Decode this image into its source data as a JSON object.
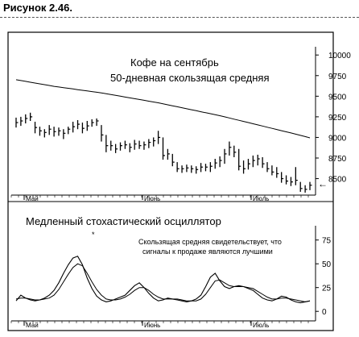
{
  "figure_label": "Рисунок 2.46.",
  "chart_data": [
    {
      "type": "ohlc",
      "title": "Кофе на сентябрь",
      "subtitle": "50-дневная скользящая средняя",
      "x_labels": [
        "Май",
        "Июнь",
        "Июль"
      ],
      "y_ticks": [
        8500,
        8750,
        9000,
        9250,
        9500,
        9750,
        10000
      ],
      "y_tick_labels": [
        "8500",
        "8750",
        "9000",
        "9250",
        "9500",
        "9750",
        "10000"
      ],
      "ylim": [
        8300,
        10100
      ],
      "bars": [
        {
          "h": 9240,
          "l": 9120,
          "c": 9180
        },
        {
          "h": 9250,
          "l": 9140,
          "c": 9200
        },
        {
          "h": 9280,
          "l": 9170,
          "c": 9230
        },
        {
          "h": 9300,
          "l": 9200,
          "c": 9250
        },
        {
          "h": 9190,
          "l": 9050,
          "c": 9120
        },
        {
          "h": 9130,
          "l": 9020,
          "c": 9080
        },
        {
          "h": 9100,
          "l": 9000,
          "c": 9060
        },
        {
          "h": 9150,
          "l": 9030,
          "c": 9100
        },
        {
          "h": 9130,
          "l": 9010,
          "c": 9070
        },
        {
          "h": 9120,
          "l": 9020,
          "c": 9080
        },
        {
          "h": 9100,
          "l": 8980,
          "c": 9050
        },
        {
          "h": 9130,
          "l": 9040,
          "c": 9100
        },
        {
          "h": 9190,
          "l": 9060,
          "c": 9130
        },
        {
          "h": 9210,
          "l": 9100,
          "c": 9160
        },
        {
          "h": 9180,
          "l": 9050,
          "c": 9110
        },
        {
          "h": 9200,
          "l": 9080,
          "c": 9140
        },
        {
          "h": 9220,
          "l": 9130,
          "c": 9180
        },
        {
          "h": 9230,
          "l": 9140,
          "c": 9200
        },
        {
          "h": 9150,
          "l": 8950,
          "c": 9030
        },
        {
          "h": 9030,
          "l": 8820,
          "c": 8900
        },
        {
          "h": 8960,
          "l": 8840,
          "c": 8900
        },
        {
          "h": 8920,
          "l": 8810,
          "c": 8860
        },
        {
          "h": 8940,
          "l": 8840,
          "c": 8900
        },
        {
          "h": 8960,
          "l": 8860,
          "c": 8910
        },
        {
          "h": 8930,
          "l": 8820,
          "c": 8880
        },
        {
          "h": 8970,
          "l": 8850,
          "c": 8920
        },
        {
          "h": 8960,
          "l": 8860,
          "c": 8900
        },
        {
          "h": 8950,
          "l": 8850,
          "c": 8910
        },
        {
          "h": 8980,
          "l": 8870,
          "c": 8940
        },
        {
          "h": 9000,
          "l": 8890,
          "c": 8960
        },
        {
          "h": 9080,
          "l": 8920,
          "c": 9000
        },
        {
          "h": 9000,
          "l": 8730,
          "c": 8780
        },
        {
          "h": 8860,
          "l": 8730,
          "c": 8800
        },
        {
          "h": 8800,
          "l": 8650,
          "c": 8700
        },
        {
          "h": 8700,
          "l": 8580,
          "c": 8620
        },
        {
          "h": 8660,
          "l": 8570,
          "c": 8620
        },
        {
          "h": 8670,
          "l": 8580,
          "c": 8630
        },
        {
          "h": 8660,
          "l": 8570,
          "c": 8620
        },
        {
          "h": 8650,
          "l": 8560,
          "c": 8610
        },
        {
          "h": 8690,
          "l": 8580,
          "c": 8640
        },
        {
          "h": 8680,
          "l": 8590,
          "c": 8640
        },
        {
          "h": 8700,
          "l": 8580,
          "c": 8650
        },
        {
          "h": 8740,
          "l": 8620,
          "c": 8690
        },
        {
          "h": 8770,
          "l": 8640,
          "c": 8720
        },
        {
          "h": 8860,
          "l": 8680,
          "c": 8800
        },
        {
          "h": 8950,
          "l": 8780,
          "c": 8880
        },
        {
          "h": 8900,
          "l": 8760,
          "c": 8820
        },
        {
          "h": 8860,
          "l": 8600,
          "c": 8650
        },
        {
          "h": 8720,
          "l": 8560,
          "c": 8620
        },
        {
          "h": 8740,
          "l": 8610,
          "c": 8680
        },
        {
          "h": 8780,
          "l": 8640,
          "c": 8720
        },
        {
          "h": 8790,
          "l": 8660,
          "c": 8740
        },
        {
          "h": 8760,
          "l": 8630,
          "c": 8680
        },
        {
          "h": 8700,
          "l": 8580,
          "c": 8620
        },
        {
          "h": 8660,
          "l": 8540,
          "c": 8580
        },
        {
          "h": 8640,
          "l": 8510,
          "c": 8560
        },
        {
          "h": 8580,
          "l": 8450,
          "c": 8500
        },
        {
          "h": 8540,
          "l": 8430,
          "c": 8470
        },
        {
          "h": 8520,
          "l": 8410,
          "c": 8460
        },
        {
          "h": 8640,
          "l": 8420,
          "c": 8480
        },
        {
          "h": 8460,
          "l": 8340,
          "c": 8380
        },
        {
          "h": 8420,
          "l": 8330,
          "c": 8370
        },
        {
          "h": 8460,
          "l": 8360,
          "c": 8420
        }
      ],
      "moving_average": [
        9700,
        9690,
        9680,
        9670,
        9660,
        9650,
        9640,
        9630,
        9620,
        9612,
        9604,
        9596,
        9588,
        9580,
        9572,
        9564,
        9556,
        9548,
        9540,
        9530,
        9520,
        9510,
        9500,
        9490,
        9480,
        9470,
        9460,
        9450,
        9440,
        9430,
        9420,
        9408,
        9396,
        9384,
        9372,
        9360,
        9348,
        9336,
        9324,
        9312,
        9300,
        9288,
        9276,
        9264,
        9250,
        9236,
        9222,
        9208,
        9194,
        9180,
        9166,
        9152,
        9138,
        9124,
        9110,
        9096,
        9082,
        9068,
        9054,
        9040,
        9025,
        9010,
        8995
      ]
    },
    {
      "type": "line",
      "title": "Медленный стохастический осциллятор",
      "annotation": "Скользящая средняя свидетельствует, что\nсигналы к продаже являются лучшими",
      "x_labels": [
        "Май",
        "Июнь",
        "Июль"
      ],
      "y_ticks": [
        0,
        25,
        50,
        75
      ],
      "y_tick_labels": [
        "0",
        "25",
        "50",
        "75"
      ],
      "ylim": [
        -10,
        90
      ],
      "series": [
        {
          "values": [
            11,
            17,
            14,
            12,
            11,
            12,
            14,
            17,
            22,
            30,
            40,
            49,
            56,
            58,
            49,
            35,
            24,
            16,
            12,
            10,
            11,
            13,
            15,
            17,
            22,
            27,
            30,
            25,
            19,
            14,
            11,
            12,
            14,
            13,
            12,
            11,
            10,
            11,
            13,
            17,
            26,
            36,
            40,
            32,
            26,
            24,
            26,
            27,
            26,
            24,
            22,
            18,
            14,
            12,
            11,
            13,
            16,
            15,
            12,
            10,
            9,
            10,
            11
          ]
        },
        {
          "values": [
            13,
            14,
            14,
            13,
            12,
            12,
            13,
            14,
            17,
            23,
            31,
            39,
            46,
            50,
            48,
            40,
            31,
            23,
            17,
            13,
            12,
            12,
            13,
            15,
            18,
            22,
            25,
            25,
            22,
            18,
            15,
            13,
            13,
            13,
            13,
            12,
            11,
            11,
            11,
            13,
            18,
            25,
            32,
            33,
            30,
            27,
            26,
            26,
            26,
            25,
            24,
            21,
            18,
            15,
            13,
            13,
            14,
            14,
            13,
            12,
            11,
            10,
            11
          ]
        }
      ]
    }
  ]
}
